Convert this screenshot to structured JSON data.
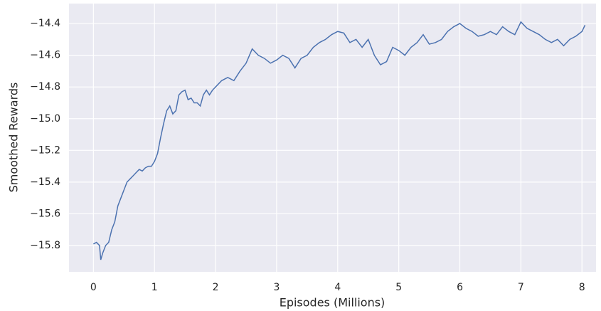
{
  "chart_data": {
    "type": "line",
    "xlabel": "Episodes (Millions)",
    "ylabel": "Smoothed Rewards",
    "x": [
      0,
      0.05,
      0.1,
      0.12,
      0.15,
      0.2,
      0.25,
      0.3,
      0.35,
      0.4,
      0.45,
      0.5,
      0.55,
      0.6,
      0.65,
      0.7,
      0.75,
      0.8,
      0.85,
      0.9,
      0.95,
      1.0,
      1.05,
      1.1,
      1.15,
      1.2,
      1.25,
      1.3,
      1.35,
      1.4,
      1.45,
      1.5,
      1.55,
      1.6,
      1.65,
      1.7,
      1.75,
      1.8,
      1.85,
      1.9,
      1.95,
      2.0,
      2.1,
      2.2,
      2.3,
      2.4,
      2.5,
      2.6,
      2.7,
      2.8,
      2.9,
      3.0,
      3.1,
      3.2,
      3.3,
      3.4,
      3.5,
      3.6,
      3.7,
      3.8,
      3.9,
      4.0,
      4.1,
      4.2,
      4.3,
      4.4,
      4.5,
      4.6,
      4.7,
      4.8,
      4.9,
      5.0,
      5.1,
      5.2,
      5.3,
      5.4,
      5.5,
      5.6,
      5.7,
      5.8,
      5.9,
      6.0,
      6.1,
      6.2,
      6.3,
      6.4,
      6.5,
      6.6,
      6.7,
      6.8,
      6.9,
      7.0,
      7.1,
      7.2,
      7.3,
      7.4,
      7.5,
      7.6,
      7.7,
      7.8,
      7.9,
      8.0,
      8.05
    ],
    "series": [
      {
        "name": "Smoothed Rewards",
        "color": "#4c72b0",
        "values": [
          -15.79,
          -15.78,
          -15.8,
          -15.89,
          -15.85,
          -15.8,
          -15.78,
          -15.7,
          -15.65,
          -15.55,
          -15.5,
          -15.45,
          -15.4,
          -15.38,
          -15.36,
          -15.34,
          -15.32,
          -15.33,
          -15.31,
          -15.3,
          -15.3,
          -15.27,
          -15.22,
          -15.12,
          -15.03,
          -14.95,
          -14.92,
          -14.97,
          -14.95,
          -14.85,
          -14.83,
          -14.82,
          -14.88,
          -14.87,
          -14.9,
          -14.9,
          -14.92,
          -14.85,
          -14.82,
          -14.85,
          -14.82,
          -14.8,
          -14.76,
          -14.74,
          -14.76,
          -14.7,
          -14.65,
          -14.56,
          -14.6,
          -14.62,
          -14.65,
          -14.63,
          -14.6,
          -14.62,
          -14.68,
          -14.62,
          -14.6,
          -14.55,
          -14.52,
          -14.5,
          -14.47,
          -14.45,
          -14.46,
          -14.52,
          -14.5,
          -14.55,
          -14.5,
          -14.6,
          -14.66,
          -14.64,
          -14.55,
          -14.57,
          -14.6,
          -14.55,
          -14.52,
          -14.47,
          -14.53,
          -14.52,
          -14.5,
          -14.45,
          -14.42,
          -14.4,
          -14.43,
          -14.45,
          -14.48,
          -14.47,
          -14.45,
          -14.47,
          -14.42,
          -14.45,
          -14.47,
          -14.39,
          -14.43,
          -14.45,
          -14.47,
          -14.5,
          -14.52,
          -14.5,
          -14.54,
          -14.5,
          -14.48,
          -14.45,
          -14.41
        ]
      }
    ],
    "xlim": [
      -0.4,
      8.23
    ],
    "ylim": [
      -15.966,
      -14.274
    ],
    "xticks": [
      0,
      1,
      2,
      3,
      4,
      5,
      6,
      7,
      8
    ],
    "yticks": [
      {
        "value": -15.8,
        "label": "−15.8"
      },
      {
        "value": -15.6,
        "label": "−15.6"
      },
      {
        "value": -15.4,
        "label": "−15.4"
      },
      {
        "value": -15.2,
        "label": "−15.2"
      },
      {
        "value": -15.0,
        "label": "−15.0"
      },
      {
        "value": -14.8,
        "label": "−14.8"
      },
      {
        "value": -14.6,
        "label": "−14.6"
      },
      {
        "value": -14.4,
        "label": "−14.4"
      }
    ],
    "grid": true
  }
}
